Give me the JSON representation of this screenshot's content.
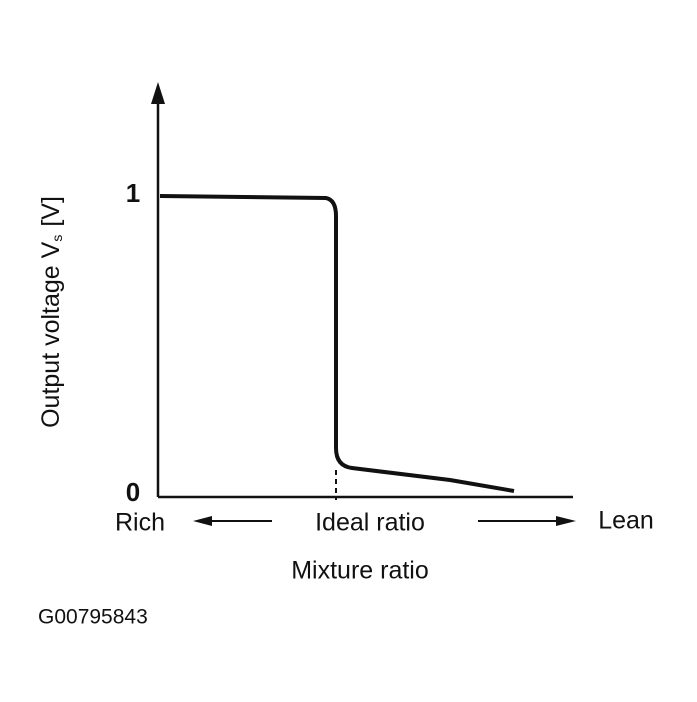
{
  "chart_data": {
    "type": "line",
    "y_label": {
      "text": "Output voltage V",
      "subscript": "s",
      "unit": "[V]"
    },
    "yticks": [
      0,
      1
    ],
    "x_label": "Mixture ratio",
    "x_annotations": {
      "left": "Rich",
      "center": "Ideal ratio",
      "right": "Lean"
    },
    "figure_id": "G00795843"
  }
}
